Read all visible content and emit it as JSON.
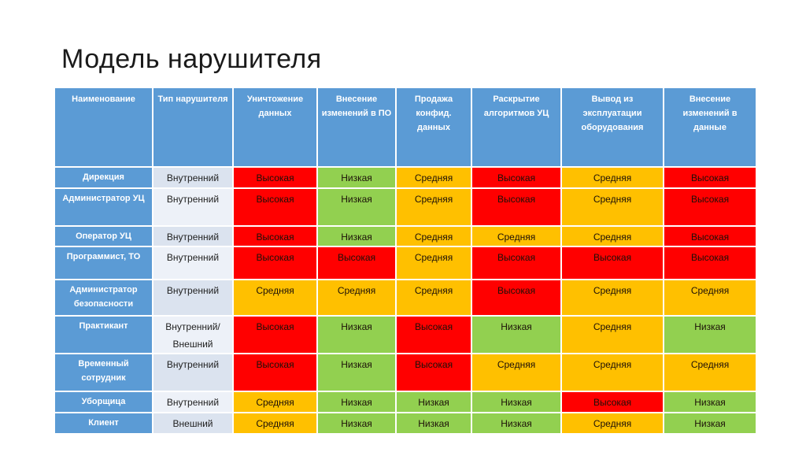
{
  "slide": {
    "title": "Модель нарушителя"
  },
  "table": {
    "headers": [
      "Наименование",
      "Тип нарушителя",
      "Уничтожение данных",
      "Внесение изменений в ПО",
      "Продажа конфид. данных",
      "Раскрытие алгоритмов УЦ",
      "Вывод из эксплуатации оборудования",
      "Внесение изменений в данные"
    ],
    "levels": {
      "high": {
        "label": "Высокая",
        "color": "#FF0000"
      },
      "medium": {
        "label": "Средняя",
        "color": "#FFC000"
      },
      "low": {
        "label": "Низкая",
        "color": "#92D050"
      }
    },
    "colors": {
      "header_bg": "#5B9BD5",
      "name_bg": "#5B9BD5",
      "type_band_dark": "#DBE3EF",
      "type_band_light": "#EDF1F8",
      "grid": "#FFFFFF"
    },
    "rows": [
      {
        "name": "Дирекция",
        "type": "Внутренний",
        "levels": [
          "high",
          "low",
          "medium",
          "high",
          "medium",
          "high"
        ]
      },
      {
        "name": "Администратор УЦ",
        "type": "Внутренний",
        "levels": [
          "high",
          "low",
          "medium",
          "high",
          "medium",
          "high"
        ]
      },
      {
        "name": "Оператор УЦ",
        "type": "Внутренний",
        "levels": [
          "high",
          "low",
          "medium",
          "medium",
          "medium",
          "high"
        ]
      },
      {
        "name": "Программист, ТО",
        "type": "Внутренний",
        "levels": [
          "high",
          "high",
          "medium",
          "high",
          "high",
          "high"
        ]
      },
      {
        "name": "Администратор безопасности",
        "type": "Внутренний",
        "levels": [
          "medium",
          "medium",
          "medium",
          "high",
          "medium",
          "medium"
        ]
      },
      {
        "name": "Практикант",
        "type": "Внутренний/ Внешний",
        "levels": [
          "high",
          "low",
          "high",
          "low",
          "medium",
          "low"
        ]
      },
      {
        "name": "Временный сотрудник",
        "type": "Внутренний",
        "levels": [
          "high",
          "low",
          "high",
          "medium",
          "medium",
          "medium"
        ]
      },
      {
        "name": "Уборщица",
        "type": "Внутренний",
        "levels": [
          "medium",
          "low",
          "low",
          "low",
          "high",
          "low"
        ]
      },
      {
        "name": "Клиент",
        "type": "Внешний",
        "levels": [
          "medium",
          "low",
          "low",
          "low",
          "medium",
          "low"
        ]
      }
    ]
  }
}
